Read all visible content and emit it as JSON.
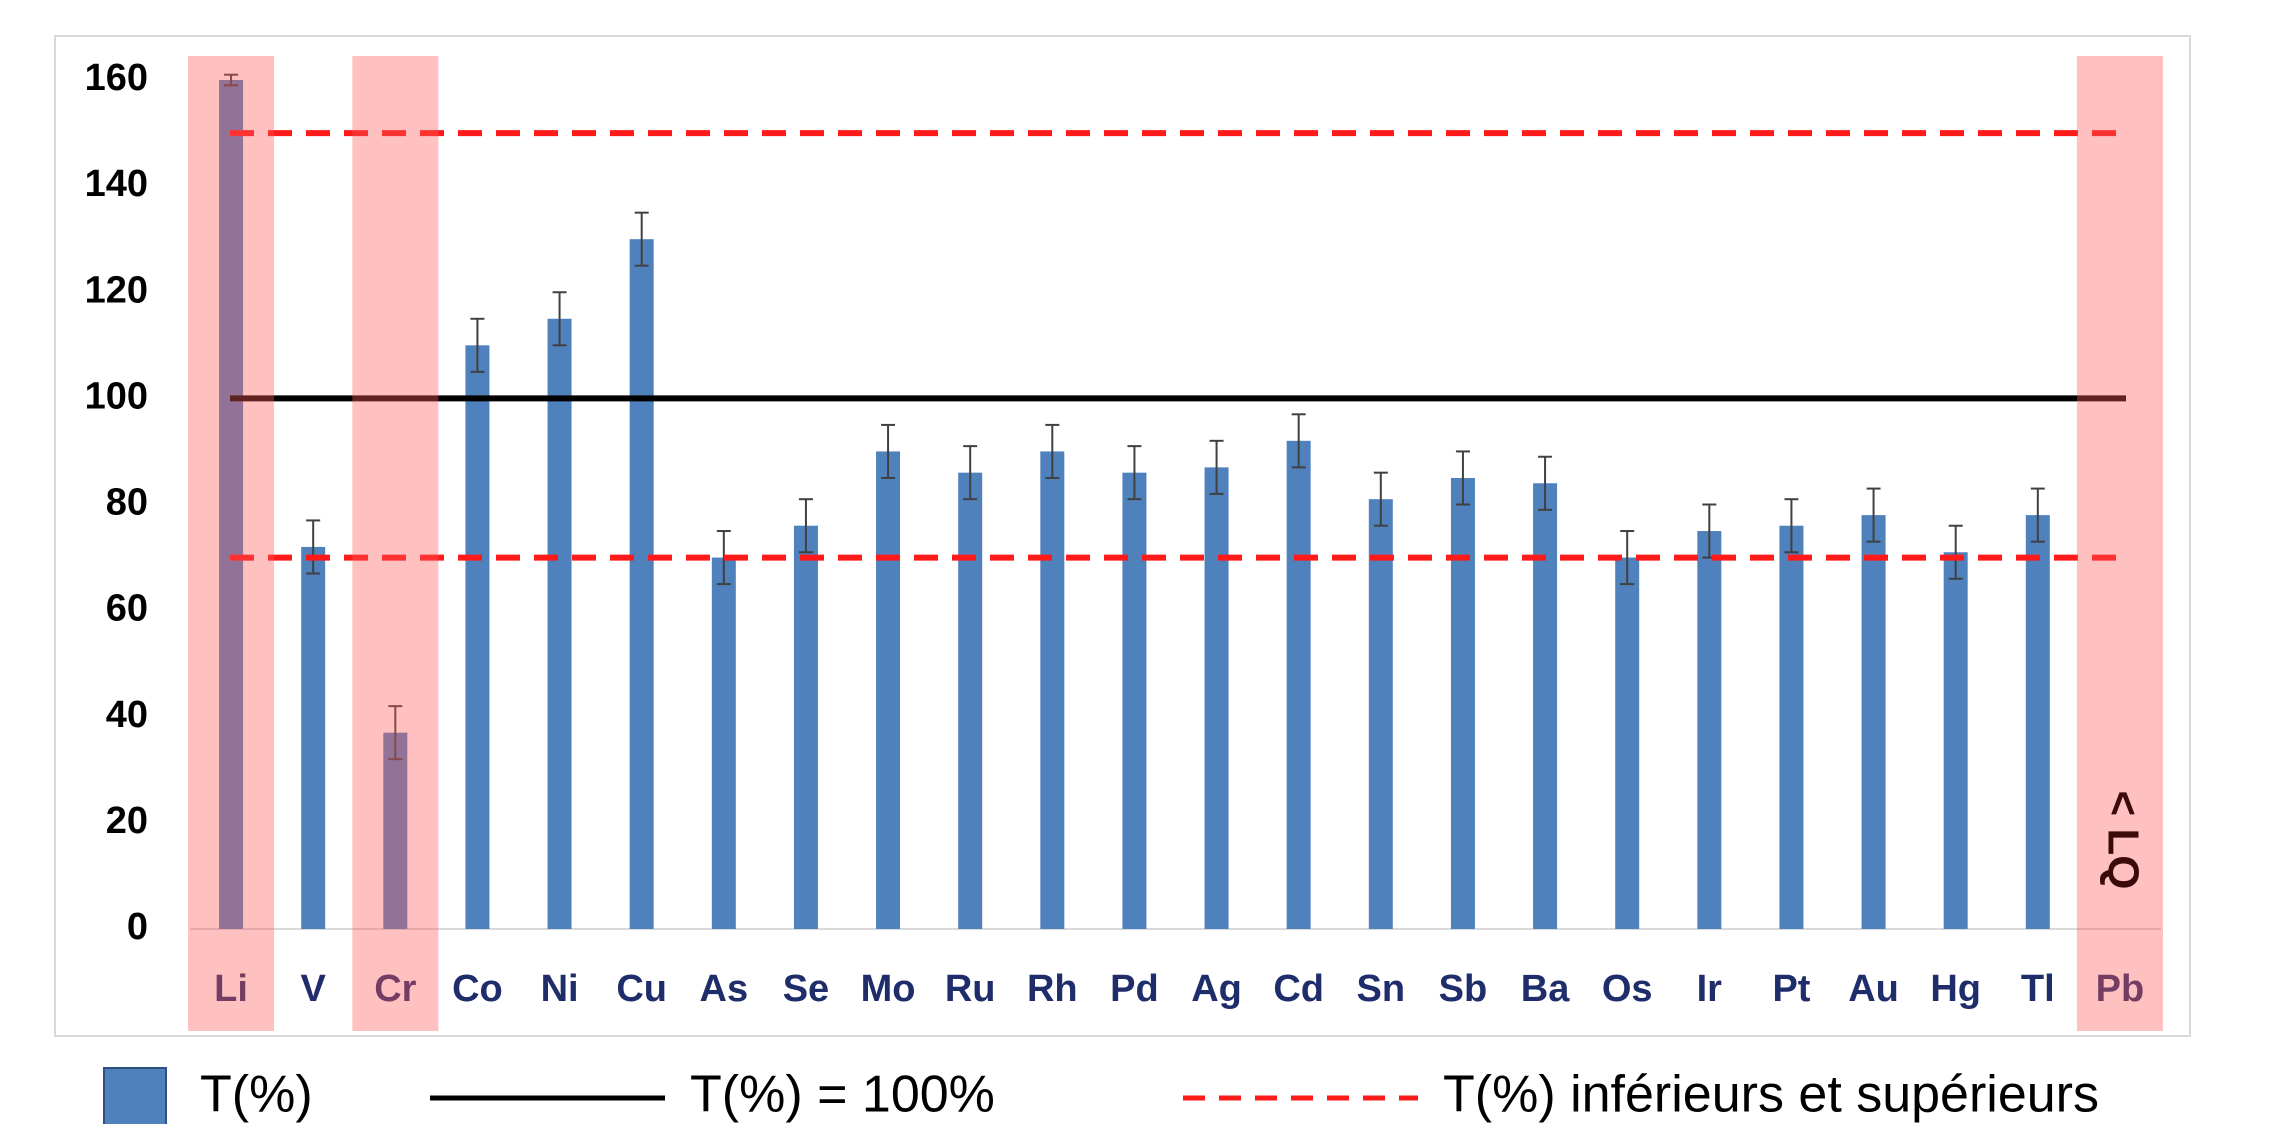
{
  "chart_data": {
    "type": "bar",
    "categories": [
      "Li",
      "V",
      "Cr",
      "Co",
      "Ni",
      "Cu",
      "As",
      "Se",
      "Mo",
      "Ru",
      "Rh",
      "Pd",
      "Ag",
      "Cd",
      "Sn",
      "Sb",
      "Ba",
      "Os",
      "Ir",
      "Pt",
      "Au",
      "Hg",
      "Tl",
      "Pb"
    ],
    "series": [
      {
        "name": "T(%)",
        "color": "#4f81bd",
        "values": [
          160,
          72,
          37,
          110,
          115,
          130,
          70,
          76,
          90,
          86,
          90,
          86,
          87,
          92,
          81,
          85,
          84,
          70,
          75,
          76,
          78,
          71,
          78,
          null
        ],
        "errors": [
          1,
          5,
          5,
          5,
          5,
          5,
          5,
          5,
          5,
          5,
          5,
          5,
          5,
          5,
          5,
          5,
          5,
          5,
          5,
          5,
          5,
          5,
          5,
          null
        ]
      }
    ],
    "reference_lines": [
      {
        "value": 100,
        "color": "#000000",
        "style": "solid",
        "label": "T(%) = 100%"
      },
      {
        "value": 70,
        "color": "#ff1a1a",
        "style": "dashed",
        "label": "T(%) inférieurs et supérieurs"
      },
      {
        "value": 150,
        "color": "#ff1a1a",
        "style": "dashed"
      }
    ],
    "highlight": [
      0,
      2,
      23
    ],
    "annotations": [
      {
        "text": "< LQ",
        "category": 23
      }
    ],
    "ylim": [
      0,
      160
    ],
    "yticks": [
      0,
      20,
      40,
      60,
      80,
      100,
      120,
      140,
      160
    ],
    "grid": false
  }
}
